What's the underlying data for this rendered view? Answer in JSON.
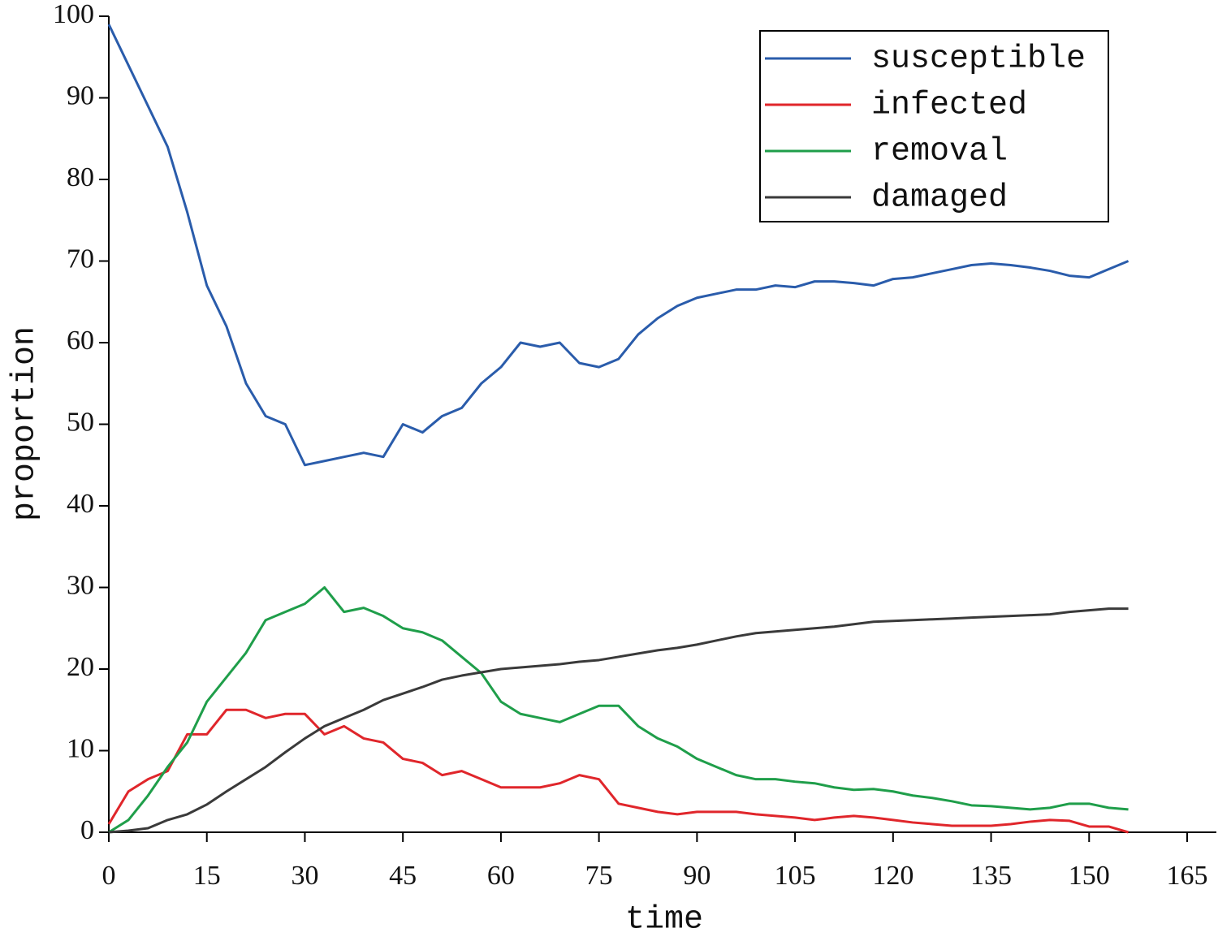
{
  "chart_data": {
    "type": "line",
    "x_label": "time",
    "y_label": "proportion",
    "x": [
      0,
      3,
      6,
      9,
      12,
      15,
      18,
      21,
      24,
      27,
      30,
      33,
      36,
      39,
      42,
      45,
      48,
      51,
      54,
      57,
      60,
      63,
      66,
      69,
      72,
      75,
      78,
      81,
      84,
      87,
      90,
      93,
      96,
      99,
      102,
      105,
      108,
      111,
      114,
      117,
      120,
      123,
      126,
      129,
      132,
      135,
      138,
      141,
      144,
      147,
      150,
      153,
      156
    ],
    "series": [
      {
        "name": "susceptible",
        "color": "#2a5cab",
        "values": [
          99,
          94,
          89,
          84,
          76,
          67,
          62,
          55,
          51,
          50,
          45,
          45.5,
          46,
          46.5,
          46,
          50,
          49,
          51,
          52,
          55,
          57,
          60,
          59.5,
          60,
          57.5,
          57,
          58,
          61,
          63,
          64.5,
          65.5,
          66,
          66.5,
          66.5,
          67,
          66.8,
          67.5,
          67.5,
          67.3,
          67,
          67.8,
          68,
          68.5,
          69,
          69.5,
          69.7,
          69.5,
          69.2,
          68.8,
          68.2,
          68,
          69,
          70
        ]
      },
      {
        "name": "infected",
        "color": "#e0262b",
        "values": [
          1,
          5,
          6.5,
          7.5,
          12,
          12,
          15,
          15,
          14,
          14.5,
          14.5,
          12,
          13,
          11.5,
          11,
          9,
          8.5,
          7,
          7.5,
          6.5,
          5.5,
          5.5,
          5.5,
          6,
          7,
          6.5,
          3.5,
          3,
          2.5,
          2.2,
          2.5,
          2.5,
          2.5,
          2.2,
          2,
          1.8,
          1.5,
          1.8,
          2,
          1.8,
          1.5,
          1.2,
          1,
          0.8,
          0.8,
          0.8,
          1,
          1.3,
          1.5,
          1.4,
          0.7,
          0.7,
          0
        ]
      },
      {
        "name": "removal",
        "color": "#1f9e4a",
        "values": [
          0,
          1.5,
          4.5,
          8,
          11,
          16,
          19,
          22,
          26,
          27,
          28,
          30,
          27,
          27.5,
          26.5,
          25,
          24.5,
          23.5,
          21.5,
          19.5,
          16,
          14.5,
          14,
          13.5,
          14.5,
          15.5,
          15.5,
          13,
          11.5,
          10.5,
          9,
          8,
          7,
          6.5,
          6.5,
          6.2,
          6,
          5.5,
          5.2,
          5.3,
          5,
          4.5,
          4.2,
          3.8,
          3.3,
          3.2,
          3,
          2.8,
          3,
          3.5,
          3.5,
          3,
          2.8
        ]
      },
      {
        "name": "damaged",
        "color": "#3a3a3a",
        "values": [
          0,
          0.2,
          0.5,
          1.5,
          2.2,
          3.4,
          5,
          6.5,
          8,
          9.8,
          11.5,
          13,
          14,
          15,
          16.2,
          17,
          17.8,
          18.7,
          19.2,
          19.6,
          20,
          20.2,
          20.4,
          20.6,
          20.9,
          21.1,
          21.5,
          21.9,
          22.3,
          22.6,
          23,
          23.5,
          24,
          24.4,
          24.6,
          24.8,
          25,
          25.2,
          25.5,
          25.8,
          25.9,
          26,
          26.1,
          26.2,
          26.3,
          26.4,
          26.5,
          26.6,
          26.7,
          27,
          27.2,
          27.4,
          27.4
        ]
      }
    ],
    "xlim": [
      0,
      165
    ],
    "xticks": [
      0,
      15,
      30,
      45,
      60,
      75,
      90,
      105,
      120,
      135,
      150,
      165
    ],
    "ylim": [
      0,
      100
    ],
    "yticks": [
      0,
      10,
      20,
      30,
      40,
      50,
      60,
      70,
      80,
      90,
      100
    ],
    "legend": "upper right",
    "grid": false
  }
}
